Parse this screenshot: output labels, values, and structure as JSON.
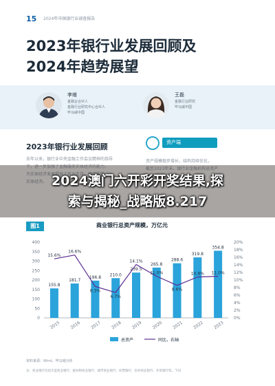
{
  "header": {
    "page_number": "15",
    "report_name": "2024年中国银行业调查报告"
  },
  "title": {
    "line1": "2023年银行业发展回顾及",
    "line2": "2024年趋势展望"
  },
  "authors": [
    {
      "name": "李维",
      "lines": [
        "金融业合伙人",
        "金融行业研究中心合伙人",
        "毕马威中国"
      ]
    },
    {
      "name": "王磊",
      "lines": [
        "金融行业研究",
        "毕马威中国",
        ""
      ]
    }
  ],
  "section": {
    "title": "2023年银行业发展回顾"
  },
  "body_text": [
    "去年以来，银行业中央金融工作会议精神的指导",
    "下，进一步加强了金融服务实体经济的能力，",
    "为实体经济发展提供了有力支持，保持服务",
    "实体经济。"
  ],
  "tag": {
    "label": "资产端"
  },
  "right_text": [
    "资产规模稳步增长，结构持续优化，",
    "截至2023年末，银行业金融机构总资产",
    "（图1）。"
  ],
  "overlay": {
    "line1": "2024澳门六开彩开奖结果,探",
    "line2": "索与揭秘_战略版8.217"
  },
  "figure": {
    "label": "图1",
    "title": "商业银行总资产规模，万亿元"
  },
  "chart_data": {
    "type": "bar",
    "title": "商业银行总资产规模，万亿元",
    "categories": [
      "2015",
      "2016",
      "2017",
      "2018",
      "2019",
      "2020",
      "2021",
      "2022",
      "2023"
    ],
    "series": [
      {
        "name": "总资产",
        "type": "bar",
        "axis": "left",
        "color": "#2ba3db",
        "values": [
          155.8,
          181.7,
          196.8,
          210.0,
          239.5,
          265.8,
          288.6,
          319.8,
          354.8
        ]
      },
      {
        "name": "同比，右轴",
        "type": "line",
        "axis": "right",
        "color": "#5b2d90",
        "values": [
          15.6,
          16.6,
          8.3,
          6.7,
          14.1,
          11.0,
          8.6,
          10.8,
          11.0
        ]
      }
    ],
    "bar_labels": [
      "155.8",
      "181.7",
      "196.8",
      "210.0",
      "239.5",
      "265.8",
      "288.6",
      "319.8",
      "354.8"
    ],
    "line_labels": [
      "15.6%",
      "16.6%",
      "8.3%",
      "6.7%",
      "14.1%",
      "11.0%",
      "8.6%",
      "10.8%",
      "11.0%"
    ],
    "ylim_left": [
      0,
      400
    ],
    "ylim_right": [
      0,
      20
    ],
    "yticks_left": [
      "0",
      "50",
      "100",
      "150",
      "200",
      "250",
      "300",
      "350",
      "400"
    ],
    "yticks_right": [
      "0%",
      "2%",
      "4%",
      "6%",
      "8%",
      "10%",
      "12%",
      "14%",
      "16%",
      "18%",
      "20%"
    ],
    "legend": [
      "总资产",
      "同比，右轴"
    ],
    "legend_position": "bottom",
    "grid": false
  },
  "source": "资料来源：Wind，毕马威分析",
  "footnote": "注：商业银行包括大型商业银行、股份制商业银行、城市商业银行、民营银行、农村商业银行、外资银行等，下同"
}
